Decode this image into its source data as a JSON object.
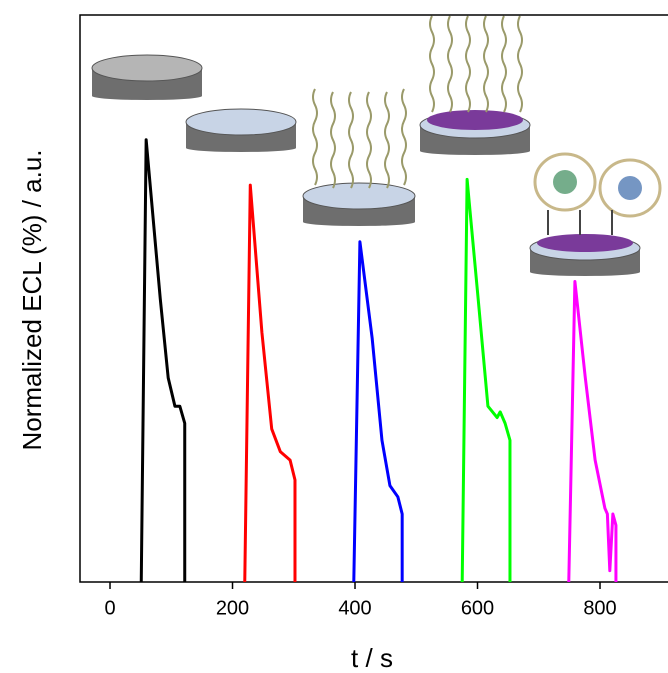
{
  "chart_data": {
    "type": "line",
    "x_label": "t / s",
    "y_label": "Normalized ECL (%) / a.u.",
    "xlim": [
      -49,
      911
    ],
    "ylim": [
      0,
      100
    ],
    "xticks": [
      0,
      200,
      400,
      600,
      800
    ],
    "series": [
      {
        "color": "#000000",
        "x": [
          51,
          59,
          82,
          95,
          106,
          114,
          122,
          122
        ],
        "values": [
          0,
          78,
          50,
          36,
          31,
          31,
          28,
          0
        ]
      },
      {
        "color": "#ff0000",
        "x": [
          220,
          229,
          248,
          264,
          278,
          294,
          302,
          302
        ],
        "values": [
          0,
          70,
          44,
          27,
          23,
          21.5,
          18,
          0
        ]
      },
      {
        "color": "#0000ff",
        "x": [
          398,
          408,
          428,
          444,
          457,
          470,
          477,
          477
        ],
        "values": [
          0,
          60,
          43,
          25,
          17,
          15,
          12,
          0
        ]
      },
      {
        "color": "#00ff00",
        "x": [
          575,
          583,
          601,
          617,
          632,
          637,
          645,
          653,
          653
        ],
        "values": [
          0,
          71,
          50,
          31,
          29,
          30,
          28,
          25,
          0
        ]
      },
      {
        "color": "#ff00ff",
        "x": [
          749,
          759,
          776,
          792,
          808,
          812,
          816,
          821,
          826,
          826
        ],
        "values": [
          0,
          53,
          36,
          21.5,
          13,
          12,
          2,
          12,
          10,
          0
        ]
      }
    ]
  }
}
